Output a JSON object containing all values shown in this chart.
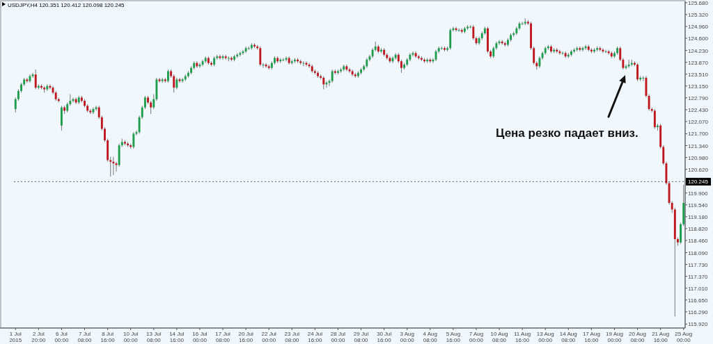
{
  "chart_data": {
    "type": "candlestick",
    "title": "USDJPY,H4 120.351 120.412 120.098 120.245",
    "categories": [
      "1 Jul 2015",
      null,
      null,
      null,
      null,
      null,
      null,
      null,
      "2 Jul 20:00",
      null,
      null,
      null,
      null,
      null,
      null,
      null,
      "6 Jul 00:00",
      null,
      null,
      null,
      null,
      null,
      null,
      null,
      "7 Jul 08:00",
      null,
      null,
      null,
      null,
      null,
      null,
      null,
      "8 Jul 16:00",
      null,
      null,
      null,
      null,
      null,
      null,
      null,
      "10 Jul 00:00",
      null,
      null,
      null,
      null,
      null,
      null,
      null,
      "13 Jul 08:00",
      null,
      null,
      null,
      null,
      null,
      null,
      null,
      "14 Jul 16:00",
      null,
      null,
      null,
      null,
      null,
      null,
      null,
      "16 Jul 00:00",
      null,
      null,
      null,
      null,
      null,
      null,
      null,
      "17 Jul 08:00",
      null,
      null,
      null,
      null,
      null,
      null,
      null,
      "20 Jul 16:00",
      null,
      null,
      null,
      null,
      null,
      null,
      null,
      "22 Jul 00:00",
      null,
      null,
      null,
      null,
      null,
      null,
      null,
      "23 Jul 08:00",
      null,
      null,
      null,
      null,
      null,
      null,
      null,
      "24 Jul 16:00",
      null,
      null,
      null,
      null,
      null,
      null,
      null,
      "28 Jul 00:00",
      null,
      null,
      null,
      null,
      null,
      null,
      null,
      "29 Jul 08:00",
      null,
      null,
      null,
      null,
      null,
      null,
      null,
      "30 Jul 16:00",
      null,
      null,
      null,
      null,
      null,
      null,
      null,
      "3 Aug 00:00",
      null,
      null,
      null,
      null,
      null,
      null,
      null,
      "4 Aug 08:00",
      null,
      null,
      null,
      null,
      null,
      null,
      null,
      "5 Aug 16:00",
      null,
      null,
      null,
      null,
      null,
      null,
      null,
      "7 Aug 00:00",
      null,
      null,
      null,
      null,
      null,
      null,
      null,
      "10 Aug 08:00",
      null,
      null,
      null,
      null,
      null,
      null,
      null,
      "11 Aug 16:00",
      null,
      null,
      null,
      null,
      null,
      null,
      null,
      "13 Aug 00:00",
      null,
      null,
      null,
      null,
      null,
      null,
      null,
      "14 Aug 08:00",
      null,
      null,
      null,
      null,
      null,
      null,
      null,
      "17 Aug 16:00",
      null,
      null,
      null,
      null,
      null,
      null,
      null,
      "19 Aug 00:00",
      null,
      null,
      null,
      null,
      null,
      null,
      null,
      "20 Aug 08:00",
      null,
      null,
      null,
      null,
      null,
      null,
      null,
      "21 Aug 16:00",
      null,
      null,
      null,
      null,
      null,
      null,
      null,
      "25 Aug 00:00"
    ],
    "ohlc": [
      [
        122.45,
        122.8,
        122.35,
        122.75
      ],
      [
        122.75,
        123.05,
        122.7,
        123.0
      ],
      [
        123.0,
        123.25,
        122.95,
        123.2
      ],
      [
        123.2,
        123.4,
        123.15,
        123.35
      ],
      [
        123.35,
        123.4,
        123.25,
        123.3
      ],
      [
        123.3,
        123.5,
        123.25,
        123.45
      ],
      [
        123.45,
        123.55,
        123.4,
        123.5
      ],
      [
        123.5,
        123.65,
        123.05,
        123.1
      ],
      [
        123.1,
        123.2,
        123.05,
        123.15
      ],
      [
        123.15,
        123.2,
        123.05,
        123.1
      ],
      [
        123.1,
        123.15,
        122.95,
        123.05
      ],
      [
        123.05,
        123.2,
        123.0,
        123.15
      ],
      [
        123.15,
        123.2,
        123.05,
        123.1
      ],
      [
        123.1,
        123.15,
        122.9,
        122.95
      ],
      [
        122.95,
        123.0,
        122.7,
        122.75
      ],
      [
        122.75,
        122.8,
        122.65,
        122.7
      ],
      [
        121.95,
        122.55,
        121.8,
        122.5
      ],
      [
        122.5,
        122.55,
        122.3,
        122.4
      ],
      [
        122.4,
        122.65,
        122.35,
        122.6
      ],
      [
        122.6,
        122.9,
        122.55,
        122.7
      ],
      [
        122.7,
        122.8,
        122.65,
        122.75
      ],
      [
        122.75,
        122.8,
        122.6,
        122.65
      ],
      [
        122.65,
        122.85,
        122.6,
        122.8
      ],
      [
        122.8,
        122.85,
        122.65,
        122.7
      ],
      [
        122.7,
        122.75,
        122.5,
        122.55
      ],
      [
        122.55,
        122.6,
        122.35,
        122.4
      ],
      [
        122.4,
        122.45,
        122.3,
        122.35
      ],
      [
        122.35,
        122.5,
        122.3,
        122.45
      ],
      [
        122.45,
        122.55,
        122.4,
        122.5
      ],
      [
        122.5,
        122.55,
        122.15,
        122.2
      ],
      [
        122.2,
        122.25,
        121.8,
        121.85
      ],
      [
        121.85,
        121.9,
        121.45,
        121.5
      ],
      [
        121.5,
        121.55,
        120.85,
        120.9
      ],
      [
        120.9,
        121.0,
        120.4,
        120.85
      ],
      [
        120.85,
        121.0,
        120.45,
        120.8
      ],
      [
        120.8,
        120.85,
        120.55,
        120.75
      ],
      [
        120.75,
        121.4,
        120.7,
        121.35
      ],
      [
        121.35,
        121.55,
        121.3,
        121.45
      ],
      [
        121.45,
        121.5,
        121.35,
        121.4
      ],
      [
        121.4,
        121.45,
        121.3,
        121.35
      ],
      [
        121.35,
        121.4,
        121.25,
        121.3
      ],
      [
        121.3,
        121.75,
        121.25,
        121.7
      ],
      [
        121.7,
        121.8,
        121.65,
        121.75
      ],
      [
        121.75,
        122.25,
        121.7,
        122.2
      ],
      [
        122.2,
        122.55,
        122.15,
        122.5
      ],
      [
        122.5,
        122.85,
        122.45,
        122.8
      ],
      [
        122.8,
        122.85,
        122.6,
        122.65
      ],
      [
        122.65,
        122.7,
        122.3,
        122.5
      ],
      [
        122.5,
        122.9,
        122.45,
        122.75
      ],
      [
        122.75,
        123.4,
        122.7,
        123.35
      ],
      [
        123.35,
        123.4,
        123.25,
        123.3
      ],
      [
        123.3,
        123.4,
        123.25,
        123.35
      ],
      [
        123.35,
        123.4,
        123.25,
        123.3
      ],
      [
        123.3,
        123.65,
        123.25,
        123.6
      ],
      [
        123.6,
        123.65,
        123.4,
        123.45
      ],
      [
        123.45,
        123.5,
        122.95,
        123.1
      ],
      [
        123.1,
        123.4,
        123.05,
        123.35
      ],
      [
        123.35,
        123.4,
        123.25,
        123.3
      ],
      [
        123.3,
        123.4,
        123.25,
        123.35
      ],
      [
        123.35,
        123.5,
        123.3,
        123.45
      ],
      [
        123.45,
        123.6,
        123.4,
        123.55
      ],
      [
        123.55,
        123.75,
        123.5,
        123.7
      ],
      [
        123.7,
        123.9,
        123.65,
        123.85
      ],
      [
        123.85,
        123.9,
        123.7,
        123.75
      ],
      [
        123.75,
        123.85,
        123.7,
        123.8
      ],
      [
        123.8,
        123.95,
        123.75,
        123.9
      ],
      [
        123.9,
        124.05,
        123.85,
        124.0
      ],
      [
        124.0,
        124.05,
        123.8,
        123.85
      ],
      [
        123.85,
        123.9,
        123.75,
        123.8
      ],
      [
        123.8,
        124.05,
        123.75,
        124.0
      ],
      [
        124.0,
        124.1,
        123.95,
        124.05
      ],
      [
        124.05,
        124.1,
        123.95,
        124.0
      ],
      [
        124.0,
        124.1,
        123.95,
        124.05
      ],
      [
        124.05,
        124.1,
        123.95,
        124.0
      ],
      [
        124.0,
        124.05,
        123.9,
        124.0
      ],
      [
        124.0,
        124.05,
        123.9,
        123.95
      ],
      [
        123.95,
        124.1,
        123.9,
        124.05
      ],
      [
        124.05,
        124.15,
        124.0,
        124.1
      ],
      [
        124.1,
        124.2,
        124.05,
        124.15
      ],
      [
        124.15,
        124.25,
        124.1,
        124.2
      ],
      [
        124.2,
        124.35,
        124.15,
        124.3
      ],
      [
        124.3,
        124.35,
        124.25,
        124.3
      ],
      [
        124.3,
        124.45,
        124.25,
        124.4
      ],
      [
        124.4,
        124.45,
        124.3,
        124.35
      ],
      [
        124.35,
        124.4,
        124.25,
        124.3
      ],
      [
        124.3,
        124.35,
        123.75,
        123.8
      ],
      [
        123.8,
        123.85,
        123.7,
        123.8
      ],
      [
        123.8,
        123.85,
        123.7,
        123.75
      ],
      [
        123.75,
        123.8,
        123.65,
        123.7
      ],
      [
        123.7,
        123.9,
        123.65,
        123.85
      ],
      [
        123.85,
        124.05,
        123.8,
        124.0
      ],
      [
        124.0,
        124.05,
        123.85,
        123.9
      ],
      [
        123.9,
        124.0,
        123.85,
        123.95
      ],
      [
        123.95,
        124.0,
        123.9,
        123.95
      ],
      [
        123.95,
        124.05,
        123.9,
        124.0
      ],
      [
        124.0,
        124.05,
        123.8,
        123.85
      ],
      [
        123.85,
        123.95,
        123.8,
        123.9
      ],
      [
        123.9,
        124.0,
        123.85,
        123.95
      ],
      [
        123.95,
        124.0,
        123.85,
        123.9
      ],
      [
        123.9,
        123.95,
        123.8,
        123.85
      ],
      [
        123.85,
        123.9,
        123.75,
        123.85
      ],
      [
        123.85,
        123.9,
        123.75,
        123.8
      ],
      [
        123.8,
        123.85,
        123.7,
        123.75
      ],
      [
        123.75,
        123.8,
        123.55,
        123.6
      ],
      [
        123.6,
        123.65,
        123.5,
        123.55
      ],
      [
        123.55,
        123.6,
        123.4,
        123.45
      ],
      [
        123.45,
        123.5,
        123.35,
        123.4
      ],
      [
        123.4,
        123.45,
        123.05,
        123.2
      ],
      [
        123.2,
        123.3,
        123.1,
        123.25
      ],
      [
        123.25,
        123.35,
        123.15,
        123.3
      ],
      [
        123.3,
        123.65,
        123.25,
        123.6
      ],
      [
        123.6,
        123.65,
        123.5,
        123.55
      ],
      [
        123.55,
        123.65,
        123.5,
        123.6
      ],
      [
        123.6,
        123.7,
        123.55,
        123.65
      ],
      [
        123.65,
        123.8,
        123.6,
        123.75
      ],
      [
        123.75,
        123.8,
        123.6,
        123.65
      ],
      [
        123.65,
        123.7,
        123.55,
        123.6
      ],
      [
        123.6,
        123.65,
        123.45,
        123.5
      ],
      [
        123.5,
        123.55,
        123.4,
        123.45
      ],
      [
        123.45,
        123.6,
        123.4,
        123.55
      ],
      [
        123.55,
        123.7,
        123.5,
        123.65
      ],
      [
        123.65,
        123.8,
        123.6,
        123.75
      ],
      [
        123.75,
        124.0,
        123.7,
        123.95
      ],
      [
        123.95,
        124.1,
        123.9,
        124.05
      ],
      [
        124.05,
        124.3,
        124.0,
        124.25
      ],
      [
        124.25,
        124.5,
        124.2,
        124.35
      ],
      [
        124.35,
        124.4,
        124.15,
        124.2
      ],
      [
        124.2,
        124.3,
        124.15,
        124.25
      ],
      [
        124.25,
        124.3,
        124.05,
        124.1
      ],
      [
        124.1,
        124.15,
        123.95,
        124.0
      ],
      [
        124.0,
        124.05,
        123.85,
        123.9
      ],
      [
        123.9,
        124.05,
        123.85,
        124.0
      ],
      [
        124.0,
        124.15,
        123.95,
        124.1
      ],
      [
        124.1,
        124.15,
        123.85,
        123.9
      ],
      [
        123.9,
        123.95,
        123.55,
        123.7
      ],
      [
        123.7,
        123.85,
        123.65,
        123.8
      ],
      [
        123.8,
        124.0,
        123.75,
        123.95
      ],
      [
        123.95,
        124.15,
        123.9,
        124.1
      ],
      [
        124.1,
        124.2,
        124.05,
        124.15
      ],
      [
        124.15,
        124.2,
        124.0,
        124.05
      ],
      [
        124.05,
        124.1,
        123.95,
        124.0
      ],
      [
        124.0,
        124.05,
        123.9,
        123.95
      ],
      [
        123.95,
        124.0,
        123.85,
        123.9
      ],
      [
        123.9,
        124.0,
        123.85,
        123.95
      ],
      [
        123.95,
        124.0,
        123.85,
        123.9
      ],
      [
        123.9,
        124.0,
        123.85,
        123.95
      ],
      [
        123.95,
        124.25,
        123.9,
        124.2
      ],
      [
        124.2,
        124.35,
        124.15,
        124.3
      ],
      [
        124.3,
        124.35,
        124.25,
        124.3
      ],
      [
        124.3,
        124.35,
        124.2,
        124.25
      ],
      [
        124.25,
        124.35,
        124.2,
        124.3
      ],
      [
        124.3,
        124.9,
        124.25,
        124.85
      ],
      [
        124.85,
        124.95,
        124.8,
        124.9
      ],
      [
        124.9,
        124.95,
        124.8,
        124.85
      ],
      [
        124.85,
        124.9,
        124.8,
        124.85
      ],
      [
        124.85,
        124.9,
        124.75,
        124.8
      ],
      [
        124.8,
        124.95,
        124.75,
        124.9
      ],
      [
        124.9,
        125.0,
        124.85,
        124.95
      ],
      [
        124.95,
        125.0,
        124.9,
        124.95
      ],
      [
        124.95,
        125.0,
        124.55,
        124.6
      ],
      [
        124.6,
        124.65,
        124.4,
        124.45
      ],
      [
        124.45,
        124.65,
        124.4,
        124.6
      ],
      [
        124.6,
        124.8,
        124.55,
        124.75
      ],
      [
        124.75,
        124.95,
        124.7,
        124.9
      ],
      [
        124.9,
        124.95,
        124.15,
        124.2
      ],
      [
        124.2,
        124.25,
        124.0,
        124.05
      ],
      [
        124.05,
        124.35,
        124.0,
        124.3
      ],
      [
        124.3,
        124.5,
        124.25,
        124.45
      ],
      [
        124.45,
        124.55,
        124.4,
        124.5
      ],
      [
        124.5,
        124.55,
        124.4,
        124.45
      ],
      [
        124.45,
        124.5,
        124.35,
        124.4
      ],
      [
        124.4,
        124.6,
        124.35,
        124.55
      ],
      [
        124.55,
        124.75,
        124.5,
        124.7
      ],
      [
        124.7,
        124.8,
        124.65,
        124.75
      ],
      [
        124.75,
        124.95,
        124.7,
        124.9
      ],
      [
        124.9,
        125.1,
        124.85,
        125.05
      ],
      [
        125.05,
        125.1,
        125.0,
        125.05
      ],
      [
        125.05,
        125.2,
        125.0,
        125.1
      ],
      [
        125.1,
        125.15,
        125.0,
        125.05
      ],
      [
        125.05,
        125.1,
        124.25,
        124.3
      ],
      [
        124.3,
        124.35,
        123.8,
        123.85
      ],
      [
        123.85,
        123.9,
        123.65,
        123.75
      ],
      [
        123.75,
        124.05,
        123.7,
        124.0
      ],
      [
        124.0,
        124.2,
        123.95,
        124.15
      ],
      [
        124.15,
        124.35,
        124.1,
        124.3
      ],
      [
        124.3,
        124.4,
        124.25,
        124.35
      ],
      [
        124.35,
        124.4,
        124.15,
        124.2
      ],
      [
        124.2,
        124.3,
        124.15,
        124.25
      ],
      [
        124.25,
        124.3,
        124.15,
        124.2
      ],
      [
        124.2,
        124.25,
        124.1,
        124.15
      ],
      [
        124.15,
        124.2,
        124.1,
        124.15
      ],
      [
        124.15,
        124.2,
        124.0,
        124.05
      ],
      [
        124.05,
        124.15,
        124.0,
        124.1
      ],
      [
        124.1,
        124.25,
        124.05,
        124.2
      ],
      [
        124.2,
        124.3,
        124.15,
        124.25
      ],
      [
        124.25,
        124.35,
        124.2,
        124.3
      ],
      [
        124.3,
        124.35,
        124.2,
        124.25
      ],
      [
        124.25,
        124.35,
        124.2,
        124.3
      ],
      [
        124.3,
        124.4,
        124.25,
        124.35
      ],
      [
        124.35,
        124.4,
        124.2,
        124.25
      ],
      [
        124.25,
        124.3,
        124.15,
        124.2
      ],
      [
        124.2,
        124.3,
        124.15,
        124.25
      ],
      [
        124.25,
        124.35,
        124.2,
        124.3
      ],
      [
        124.3,
        124.35,
        124.2,
        124.25
      ],
      [
        124.25,
        124.3,
        124.15,
        124.2
      ],
      [
        124.2,
        124.25,
        124.15,
        124.2
      ],
      [
        124.2,
        124.25,
        124.1,
        124.15
      ],
      [
        124.15,
        124.2,
        124.0,
        124.05
      ],
      [
        124.05,
        124.2,
        124.0,
        124.15
      ],
      [
        124.15,
        124.35,
        124.1,
        124.3
      ],
      [
        124.3,
        124.35,
        123.9,
        123.95
      ],
      [
        123.95,
        124.0,
        123.65,
        123.7
      ],
      [
        123.7,
        123.8,
        123.65,
        123.75
      ],
      [
        123.75,
        123.95,
        123.7,
        123.8
      ],
      [
        123.8,
        123.95,
        123.75,
        123.85
      ],
      [
        123.85,
        123.9,
        123.75,
        123.8
      ],
      [
        123.8,
        123.85,
        123.3,
        123.35
      ],
      [
        123.35,
        123.45,
        123.3,
        123.4
      ],
      [
        123.4,
        123.45,
        123.3,
        123.4
      ],
      [
        123.4,
        123.45,
        122.8,
        122.85
      ],
      [
        122.85,
        122.9,
        122.4,
        122.45
      ],
      [
        122.45,
        122.5,
        122.35,
        122.4
      ],
      [
        122.4,
        122.45,
        121.85,
        121.9
      ],
      [
        121.9,
        122.0,
        121.8,
        121.95
      ],
      [
        121.95,
        122.0,
        121.25,
        121.3
      ],
      [
        121.3,
        121.35,
        120.75,
        120.8
      ],
      [
        120.8,
        120.85,
        120.15,
        120.2
      ],
      [
        120.2,
        120.25,
        119.55,
        119.6
      ],
      [
        119.6,
        119.65,
        119.3,
        119.4
      ],
      [
        119.4,
        119.45,
        116.15,
        118.5
      ],
      [
        118.5,
        118.55,
        118.3,
        118.4
      ],
      [
        118.4,
        119.0,
        118.35,
        118.95
      ],
      [
        118.95,
        120.15,
        118.9,
        119.6
      ]
    ],
    "colors": [
      "#1e9e4c",
      "#1e9e4c",
      "#1e9e4c",
      "#1e9e4c",
      "#c0161f",
      "#1e9e4c",
      "#1e9e4c",
      "#c0161f",
      "#1e9e4c",
      "#c0161f",
      "#c0161f",
      "#1e9e4c",
      "#c0161f",
      "#c0161f",
      "#c0161f",
      "#c0161f",
      "#1e9e4c",
      "#c0161f",
      "#1e9e4c",
      "#1e9e4c",
      "#1e9e4c",
      "#c0161f",
      "#1e9e4c",
      "#c0161f",
      "#c0161f",
      "#c0161f",
      "#c0161f",
      "#1e9e4c",
      "#1e9e4c",
      "#c0161f",
      "#c0161f",
      "#c0161f",
      "#c0161f",
      "#c0161f",
      "#c0161f",
      "#c0161f",
      "#1e9e4c",
      "#1e9e4c",
      "#c0161f",
      "#c0161f",
      "#c0161f",
      "#1e9e4c",
      "#1e9e4c",
      "#1e9e4c",
      "#1e9e4c",
      "#1e9e4c",
      "#c0161f",
      "#c0161f",
      "#1e9e4c",
      "#1e9e4c",
      "#c0161f",
      "#1e9e4c",
      "#c0161f",
      "#1e9e4c",
      "#c0161f",
      "#c0161f",
      "#1e9e4c",
      "#c0161f",
      "#1e9e4c",
      "#1e9e4c",
      "#1e9e4c",
      "#1e9e4c",
      "#1e9e4c",
      "#c0161f",
      "#1e9e4c",
      "#1e9e4c",
      "#1e9e4c",
      "#c0161f",
      "#c0161f",
      "#1e9e4c",
      "#1e9e4c",
      "#c0161f",
      "#1e9e4c",
      "#c0161f",
      "#1e9e4c",
      "#c0161f",
      "#1e9e4c",
      "#1e9e4c",
      "#1e9e4c",
      "#1e9e4c",
      "#1e9e4c",
      "#1e9e4c",
      "#1e9e4c",
      "#c0161f",
      "#c0161f",
      "#c0161f",
      "#1e9e4c",
      "#c0161f",
      "#c0161f",
      "#1e9e4c",
      "#1e9e4c",
      "#c0161f",
      "#1e9e4c",
      "#1e9e4c",
      "#1e9e4c",
      "#c0161f",
      "#1e9e4c",
      "#1e9e4c",
      "#c0161f",
      "#c0161f",
      "#1e9e4c",
      "#c0161f",
      "#c0161f",
      "#c0161f",
      "#c0161f",
      "#c0161f",
      "#c0161f",
      "#c0161f",
      "#1e9e4c",
      "#1e9e4c",
      "#1e9e4c",
      "#c0161f",
      "#1e9e4c",
      "#1e9e4c",
      "#1e9e4c",
      "#c0161f",
      "#c0161f",
      "#c0161f",
      "#c0161f",
      "#1e9e4c",
      "#1e9e4c",
      "#1e9e4c",
      "#1e9e4c",
      "#1e9e4c",
      "#1e9e4c",
      "#1e9e4c",
      "#c0161f",
      "#1e9e4c",
      "#c0161f",
      "#c0161f",
      "#c0161f",
      "#1e9e4c",
      "#1e9e4c",
      "#c0161f",
      "#c0161f",
      "#1e9e4c",
      "#1e9e4c",
      "#1e9e4c",
      "#1e9e4c",
      "#c0161f",
      "#c0161f",
      "#c0161f",
      "#c0161f",
      "#1e9e4c",
      "#c0161f",
      "#1e9e4c",
      "#1e9e4c",
      "#1e9e4c",
      "#1e9e4c",
      "#c0161f",
      "#1e9e4c",
      "#1e9e4c",
      "#1e9e4c",
      "#c0161f",
      "#1e9e4c",
      "#c0161f",
      "#1e9e4c",
      "#1e9e4c",
      "#1e9e4c",
      "#c0161f",
      "#c0161f",
      "#1e9e4c",
      "#1e9e4c",
      "#1e9e4c",
      "#c0161f",
      "#c0161f",
      "#1e9e4c",
      "#1e9e4c",
      "#1e9e4c",
      "#c0161f",
      "#c0161f",
      "#1e9e4c",
      "#1e9e4c",
      "#1e9e4c",
      "#1e9e4c",
      "#1e9e4c",
      "#1e9e4c",
      "#1e9e4c",
      "#c0161f",
      "#c0161f",
      "#c0161f",
      "#c0161f",
      "#1e9e4c",
      "#1e9e4c",
      "#1e9e4c",
      "#1e9e4c",
      "#c0161f",
      "#1e9e4c",
      "#c0161f",
      "#c0161f",
      "#1e9e4c",
      "#c0161f",
      "#1e9e4c",
      "#1e9e4c",
      "#1e9e4c",
      "#1e9e4c",
      "#c0161f",
      "#1e9e4c",
      "#1e9e4c",
      "#c0161f",
      "#c0161f",
      "#1e9e4c",
      "#1e9e4c",
      "#c0161f",
      "#c0161f",
      "#1e9e4c",
      "#c0161f",
      "#c0161f",
      "#1e9e4c",
      "#1e9e4c",
      "#c0161f",
      "#c0161f",
      "#1e9e4c",
      "#1e9e4c",
      "#1e9e4c",
      "#c0161f",
      "#c0161f",
      "#1e9e4c",
      "#1e9e4c",
      "#c0161f",
      "#c0161f",
      "#c0161f",
      "#c0161f",
      "#1e9e4c",
      "#c0161f",
      "#c0161f",
      "#c0161f",
      "#c0161f",
      "#c0161f",
      "#c0161f",
      "#c0161f",
      "#1e9e4c",
      "#1e9e4c"
    ],
    "ylim": [
      115.8,
      125.72
    ],
    "yticks": [
      {
        "value": 125.68,
        "label": "125.680"
      },
      {
        "value": 125.32,
        "label": "125.320"
      },
      {
        "value": 124.96,
        "label": "124.960"
      },
      {
        "value": 124.6,
        "label": "124.600"
      },
      {
        "value": 124.23,
        "label": "124.230"
      },
      {
        "value": 123.87,
        "label": "123.870"
      },
      {
        "value": 123.51,
        "label": "123.510"
      },
      {
        "value": 123.15,
        "label": "123.150"
      },
      {
        "value": 122.79,
        "label": "122.790"
      },
      {
        "value": 122.43,
        "label": "122.430"
      },
      {
        "value": 122.07,
        "label": "122.070"
      },
      {
        "value": 121.7,
        "label": "121.700"
      },
      {
        "value": 121.34,
        "label": "121.340"
      },
      {
        "value": 120.98,
        "label": "120.980"
      },
      {
        "value": 120.62,
        "label": "120.620"
      },
      {
        "value": 119.9,
        "label": "119.900"
      },
      {
        "value": 119.54,
        "label": "119.540"
      },
      {
        "value": 119.18,
        "label": "119.180"
      },
      {
        "value": 118.82,
        "label": "118.820"
      },
      {
        "value": 118.46,
        "label": "118.460"
      },
      {
        "value": 118.09,
        "label": "118.090"
      },
      {
        "value": 117.73,
        "label": "117.730"
      },
      {
        "value": 117.37,
        "label": "117.370"
      },
      {
        "value": 117.01,
        "label": "117.010"
      },
      {
        "value": 116.65,
        "label": "116.650"
      },
      {
        "value": 116.29,
        "label": "116.290"
      },
      {
        "value": 115.92,
        "label": "115.920"
      }
    ],
    "ref_lines": [
      {
        "axis": "y",
        "value": 120.245,
        "label": "120.245",
        "color": "#000000"
      }
    ],
    "annotations": [
      "Цена резко падает вниз."
    ]
  }
}
